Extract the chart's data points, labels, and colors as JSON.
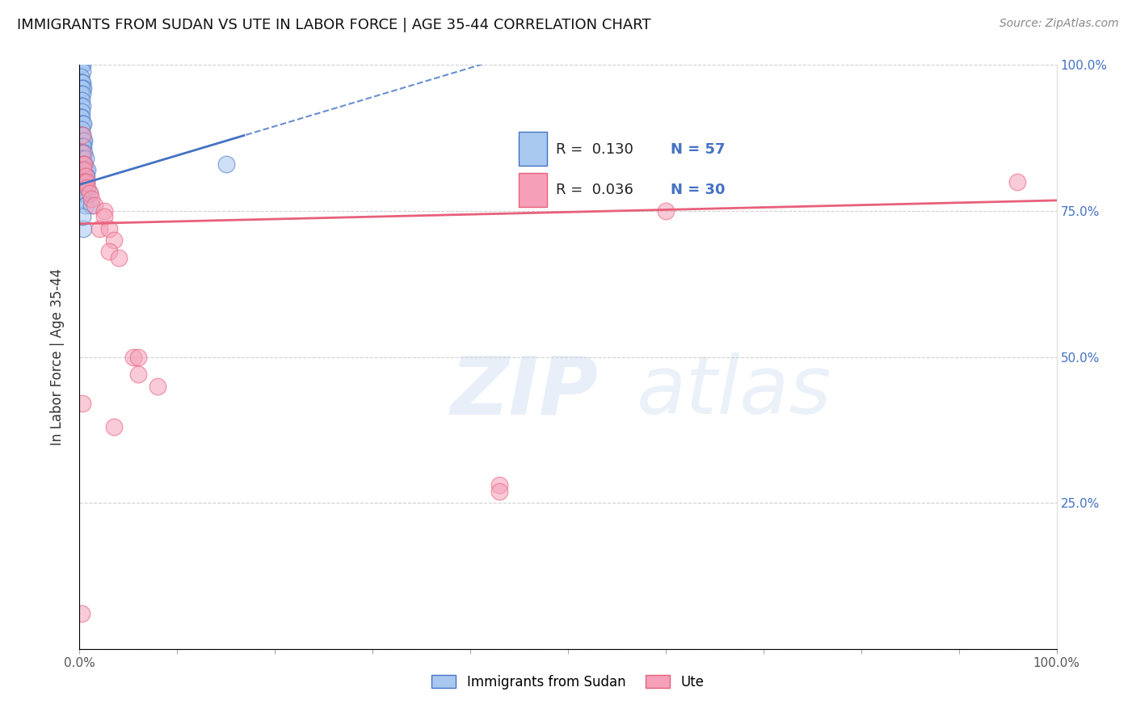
{
  "title": "IMMIGRANTS FROM SUDAN VS UTE IN LABOR FORCE | AGE 35-44 CORRELATION CHART",
  "source": "Source: ZipAtlas.com",
  "ylabel": "In Labor Force | Age 35-44",
  "xlim": [
    0.0,
    1.0
  ],
  "ylim": [
    0.0,
    1.0
  ],
  "x_ticks": [
    0.0,
    0.1,
    0.2,
    0.3,
    0.4,
    0.5,
    0.6,
    0.7,
    0.8,
    0.9,
    1.0
  ],
  "y_ticks": [
    0.0,
    0.25,
    0.5,
    0.75,
    1.0
  ],
  "y_tick_labels_right": [
    "",
    "25.0%",
    "50.0%",
    "75.0%",
    "100.0%"
  ],
  "legend_r_blue": "R =  0.130",
  "legend_n_blue": "N = 57",
  "legend_r_pink": "R =  0.036",
  "legend_n_pink": "N = 30",
  "blue_color": "#A8C8F0",
  "pink_color": "#F5A0B8",
  "blue_line_color": "#4472C4",
  "pink_line_color": "#E8607A",
  "watermark_zip": "ZIP",
  "watermark_atlas": "atlas",
  "sudan_points": [
    [
      0.001,
      1.0
    ],
    [
      0.002,
      1.0
    ],
    [
      0.003,
      1.0
    ],
    [
      0.003,
      0.99
    ],
    [
      0.001,
      0.98
    ],
    [
      0.002,
      0.97
    ],
    [
      0.003,
      0.97
    ],
    [
      0.004,
      0.96
    ],
    [
      0.002,
      0.96
    ],
    [
      0.001,
      0.95
    ],
    [
      0.003,
      0.95
    ],
    [
      0.002,
      0.94
    ],
    [
      0.001,
      0.93
    ],
    [
      0.003,
      0.93
    ],
    [
      0.002,
      0.92
    ],
    [
      0.001,
      0.91
    ],
    [
      0.002,
      0.91
    ],
    [
      0.003,
      0.9
    ],
    [
      0.004,
      0.9
    ],
    [
      0.002,
      0.89
    ],
    [
      0.001,
      0.88
    ],
    [
      0.003,
      0.88
    ],
    [
      0.004,
      0.87
    ],
    [
      0.005,
      0.87
    ],
    [
      0.002,
      0.86
    ],
    [
      0.003,
      0.86
    ],
    [
      0.004,
      0.86
    ],
    [
      0.001,
      0.85
    ],
    [
      0.003,
      0.85
    ],
    [
      0.005,
      0.85
    ],
    [
      0.002,
      0.84
    ],
    [
      0.004,
      0.84
    ],
    [
      0.006,
      0.84
    ],
    [
      0.003,
      0.83
    ],
    [
      0.005,
      0.83
    ],
    [
      0.002,
      0.82
    ],
    [
      0.004,
      0.82
    ],
    [
      0.006,
      0.82
    ],
    [
      0.008,
      0.82
    ],
    [
      0.003,
      0.81
    ],
    [
      0.005,
      0.81
    ],
    [
      0.007,
      0.81
    ],
    [
      0.003,
      0.8
    ],
    [
      0.005,
      0.8
    ],
    [
      0.007,
      0.8
    ],
    [
      0.004,
      0.79
    ],
    [
      0.006,
      0.79
    ],
    [
      0.003,
      0.78
    ],
    [
      0.005,
      0.78
    ],
    [
      0.007,
      0.78
    ],
    [
      0.01,
      0.78
    ],
    [
      0.003,
      0.77
    ],
    [
      0.006,
      0.76
    ],
    [
      0.012,
      0.76
    ],
    [
      0.15,
      0.83
    ],
    [
      0.004,
      0.72
    ],
    [
      0.003,
      0.74
    ]
  ],
  "ute_points": [
    [
      0.003,
      0.88
    ],
    [
      0.003,
      0.85
    ],
    [
      0.004,
      0.83
    ],
    [
      0.005,
      0.83
    ],
    [
      0.004,
      0.82
    ],
    [
      0.006,
      0.81
    ],
    [
      0.005,
      0.8
    ],
    [
      0.007,
      0.8
    ],
    [
      0.008,
      0.79
    ],
    [
      0.01,
      0.78
    ],
    [
      0.012,
      0.77
    ],
    [
      0.015,
      0.76
    ],
    [
      0.025,
      0.75
    ],
    [
      0.025,
      0.74
    ],
    [
      0.02,
      0.72
    ],
    [
      0.03,
      0.72
    ],
    [
      0.035,
      0.7
    ],
    [
      0.03,
      0.68
    ],
    [
      0.04,
      0.67
    ],
    [
      0.055,
      0.5
    ],
    [
      0.06,
      0.5
    ],
    [
      0.06,
      0.47
    ],
    [
      0.08,
      0.45
    ],
    [
      0.6,
      0.75
    ],
    [
      0.96,
      0.8
    ],
    [
      0.003,
      0.42
    ],
    [
      0.035,
      0.38
    ],
    [
      0.43,
      0.28
    ],
    [
      0.43,
      0.27
    ],
    [
      0.002,
      0.06
    ]
  ],
  "background_color": "#FFFFFF",
  "grid_color": "#CCCCCC"
}
